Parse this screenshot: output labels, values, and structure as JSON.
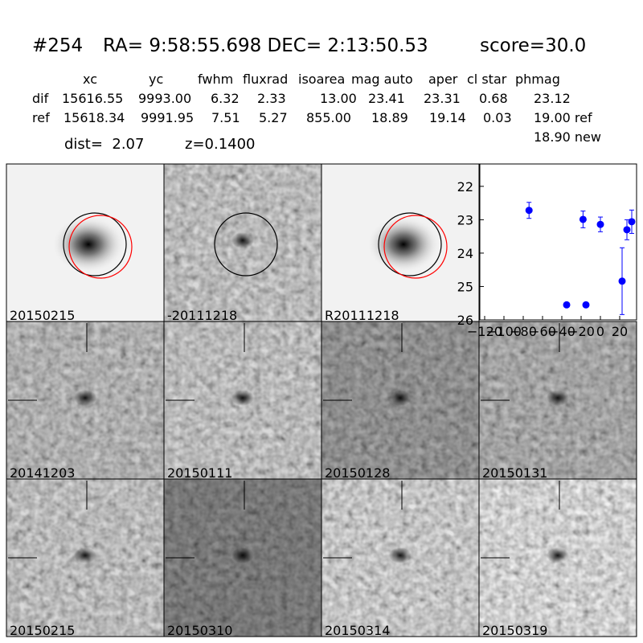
{
  "header": {
    "id": "#254",
    "coords": "RA= 9:58:55.698 DEC= 2:13:50.53",
    "score": "score=30.0"
  },
  "table": {
    "columns": [
      "xc",
      "yc",
      "fwhm",
      "fluxrad",
      "isoarea",
      "mag auto",
      "aper",
      "cl star",
      "phmag"
    ],
    "rows": [
      [
        "dif",
        "15616.55",
        "9993.00",
        "6.32",
        "2.33",
        "13.00",
        "23.41",
        "23.31",
        "0.68",
        "23.12"
      ],
      [
        "ref",
        "15618.34",
        "9991.95",
        "7.51",
        "5.27",
        "855.00",
        "18.89",
        "19.14",
        "0.03",
        "19.00 ref"
      ]
    ],
    "extra": "18.90 new"
  },
  "dist": "dist=  2.07",
  "z": "z=0.1400",
  "stamps": [
    {
      "label": "20150215"
    },
    {
      "label": "-20111218"
    },
    {
      "label": "R20111218"
    },
    {
      "label": "20141203"
    },
    {
      "label": "20150111"
    },
    {
      "label": "20150128"
    },
    {
      "label": "20150131"
    },
    {
      "label": "20150215",
      "color": "#ff0000"
    },
    {
      "label": "20150310"
    },
    {
      "label": "20150314"
    },
    {
      "label": "20150319"
    }
  ],
  "chart_data": {
    "type": "scatter",
    "color": "#0000ff",
    "x": [
      -74,
      -35,
      -18,
      -15,
      0,
      22.5,
      27.5,
      32.5
    ],
    "values": [
      22.72,
      25.55,
      22.99,
      25.55,
      23.14,
      24.84,
      23.3,
      23.06
    ],
    "errors": [
      0.24,
      0.05,
      0.25,
      0.05,
      0.22,
      1.0,
      0.3,
      0.35
    ],
    "xlim": [
      -125,
      37.5
    ],
    "xticks": [
      {
        "value": -120,
        "label": "−120"
      },
      {
        "value": -100,
        "label": "−100"
      },
      {
        "value": -80,
        "label": "−80"
      },
      {
        "value": -60,
        "label": "−60"
      },
      {
        "value": -40,
        "label": "−40"
      },
      {
        "value": -20,
        "label": "−20"
      },
      0,
      20
    ],
    "ylim": [
      26,
      21.33
    ],
    "yticks": [
      22,
      23,
      24,
      25,
      26
    ]
  }
}
